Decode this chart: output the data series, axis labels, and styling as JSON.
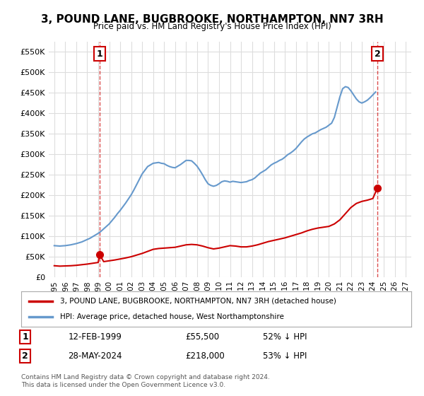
{
  "title": "3, POUND LANE, BUGBROOKE, NORTHAMPTON, NN7 3RH",
  "subtitle": "Price paid vs. HM Land Registry's House Price Index (HPI)",
  "legend_line1": "3, POUND LANE, BUGBROOKE, NORTHAMPTON, NN7 3RH (detached house)",
  "legend_line2": "HPI: Average price, detached house, West Northamptonshire",
  "annotation1_label": "1",
  "annotation1_date": "12-FEB-1999",
  "annotation1_price": "£55,500",
  "annotation1_hpi": "52% ↓ HPI",
  "annotation2_label": "2",
  "annotation2_date": "28-MAY-2024",
  "annotation2_price": "£218,000",
  "annotation2_hpi": "53% ↓ HPI",
  "footnote": "Contains HM Land Registry data © Crown copyright and database right 2024.\nThis data is licensed under the Open Government Licence v3.0.",
  "point1_x": 1999.12,
  "point1_y": 55500,
  "point2_x": 2024.42,
  "point2_y": 218000,
  "red_color": "#cc0000",
  "blue_color": "#6699cc",
  "grid_color": "#dddddd",
  "background_color": "#ffffff",
  "ylim": [
    0,
    575000
  ],
  "xlim": [
    1994.5,
    2027.5
  ],
  "yticks": [
    0,
    50000,
    100000,
    150000,
    200000,
    250000,
    300000,
    350000,
    400000,
    450000,
    500000,
    550000
  ],
  "xtick_years": [
    1995,
    1996,
    1997,
    1998,
    1999,
    2000,
    2001,
    2002,
    2003,
    2004,
    2005,
    2006,
    2007,
    2008,
    2009,
    2010,
    2011,
    2012,
    2013,
    2014,
    2015,
    2016,
    2017,
    2018,
    2019,
    2020,
    2021,
    2022,
    2023,
    2024,
    2025,
    2026,
    2027
  ],
  "hpi_x": [
    1995.0,
    1995.25,
    1995.5,
    1995.75,
    1996.0,
    1996.25,
    1996.5,
    1996.75,
    1997.0,
    1997.25,
    1997.5,
    1997.75,
    1998.0,
    1998.25,
    1998.5,
    1998.75,
    1999.0,
    1999.25,
    1999.5,
    1999.75,
    2000.0,
    2000.25,
    2000.5,
    2000.75,
    2001.0,
    2001.25,
    2001.5,
    2001.75,
    2002.0,
    2002.25,
    2002.5,
    2002.75,
    2003.0,
    2003.25,
    2003.5,
    2003.75,
    2004.0,
    2004.25,
    2004.5,
    2004.75,
    2005.0,
    2005.25,
    2005.5,
    2005.75,
    2006.0,
    2006.25,
    2006.5,
    2006.75,
    2007.0,
    2007.25,
    2007.5,
    2007.75,
    2008.0,
    2008.25,
    2008.5,
    2008.75,
    2009.0,
    2009.25,
    2009.5,
    2009.75,
    2010.0,
    2010.25,
    2010.5,
    2010.75,
    2011.0,
    2011.25,
    2011.5,
    2011.75,
    2012.0,
    2012.25,
    2012.5,
    2012.75,
    2013.0,
    2013.25,
    2013.5,
    2013.75,
    2014.0,
    2014.25,
    2014.5,
    2014.75,
    2015.0,
    2015.25,
    2015.5,
    2015.75,
    2016.0,
    2016.25,
    2016.5,
    2016.75,
    2017.0,
    2017.25,
    2017.5,
    2017.75,
    2018.0,
    2018.25,
    2018.5,
    2018.75,
    2019.0,
    2019.25,
    2019.5,
    2019.75,
    2020.0,
    2020.25,
    2020.5,
    2020.75,
    2021.0,
    2021.25,
    2021.5,
    2021.75,
    2022.0,
    2022.25,
    2022.5,
    2022.75,
    2023.0,
    2023.25,
    2023.5,
    2023.75,
    2024.0,
    2024.25
  ],
  "hpi_y": [
    77000,
    76500,
    76000,
    76500,
    77000,
    78000,
    79000,
    80500,
    82000,
    84000,
    86000,
    89000,
    92000,
    95000,
    99000,
    103000,
    107000,
    112000,
    118000,
    124000,
    130000,
    138000,
    146000,
    155000,
    163000,
    172000,
    181000,
    191000,
    201000,
    213000,
    226000,
    239000,
    252000,
    261000,
    270000,
    274000,
    278000,
    279000,
    280000,
    278000,
    277000,
    273000,
    270000,
    268000,
    267000,
    271000,
    275000,
    280000,
    285000,
    285000,
    284000,
    278000,
    271000,
    261000,
    250000,
    238000,
    228000,
    224000,
    222000,
    224000,
    228000,
    233000,
    235000,
    234000,
    232000,
    234000,
    233000,
    232000,
    231000,
    232000,
    233000,
    236000,
    238000,
    242000,
    248000,
    254000,
    258000,
    262000,
    268000,
    274000,
    278000,
    281000,
    285000,
    288000,
    293000,
    299000,
    303000,
    308000,
    314000,
    322000,
    330000,
    337000,
    342000,
    346000,
    350000,
    352000,
    356000,
    360000,
    363000,
    366000,
    371000,
    376000,
    390000,
    415000,
    440000,
    460000,
    465000,
    463000,
    455000,
    445000,
    435000,
    428000,
    425000,
    428000,
    432000,
    438000,
    445000,
    452000
  ],
  "red_x": [
    1995.0,
    1995.5,
    1996.0,
    1996.5,
    1997.0,
    1997.5,
    1998.0,
    1998.5,
    1999.0,
    1999.12,
    1999.5,
    2000.0,
    2000.5,
    2001.0,
    2001.5,
    2002.0,
    2002.5,
    2003.0,
    2003.5,
    2004.0,
    2004.5,
    2005.0,
    2005.5,
    2006.0,
    2006.5,
    2007.0,
    2007.5,
    2008.0,
    2008.5,
    2009.0,
    2009.5,
    2010.0,
    2010.5,
    2011.0,
    2011.5,
    2012.0,
    2012.5,
    2013.0,
    2013.5,
    2014.0,
    2014.5,
    2015.0,
    2015.5,
    2016.0,
    2016.5,
    2017.0,
    2017.5,
    2018.0,
    2018.5,
    2019.0,
    2019.5,
    2020.0,
    2020.5,
    2021.0,
    2021.5,
    2022.0,
    2022.5,
    2023.0,
    2023.5,
    2024.0,
    2024.42
  ],
  "red_y": [
    28000,
    27000,
    27500,
    28000,
    29000,
    30500,
    32000,
    34000,
    36000,
    55500,
    38000,
    40000,
    42000,
    44500,
    47000,
    50000,
    54000,
    58000,
    63000,
    68000,
    70000,
    71000,
    72000,
    73000,
    76000,
    79000,
    80000,
    79000,
    76000,
    72000,
    69000,
    71000,
    74000,
    77000,
    76000,
    74000,
    74000,
    76000,
    79000,
    83000,
    87000,
    90000,
    93000,
    96000,
    100000,
    104000,
    108000,
    113000,
    117000,
    120000,
    122000,
    124000,
    130000,
    140000,
    155000,
    170000,
    180000,
    185000,
    188000,
    192000,
    218000
  ]
}
